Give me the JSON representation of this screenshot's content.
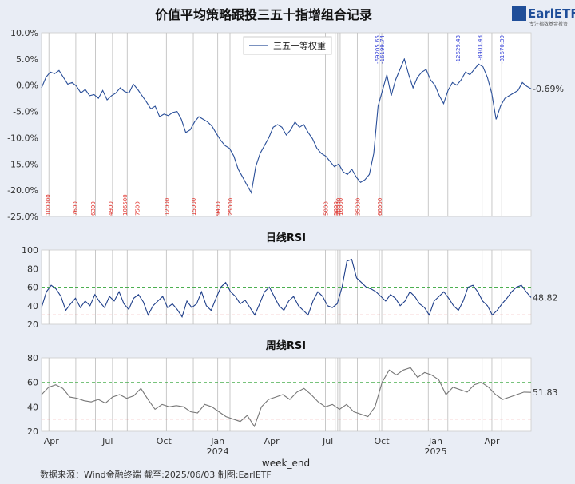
{
  "title": "价值平均策略跟投三五十指增组合记录",
  "logo": {
    "text": "EarlETF",
    "sub": "专注指数基金投资",
    "color": "#1f4e99"
  },
  "footer": "数据来源：Wind金融终端 截至:2025/06/03 制图:EarlETF",
  "xaxis": {
    "label": "week_end",
    "ticks": [
      "Apr",
      "Jul",
      "Oct",
      "Jan",
      "Apr",
      "Jul",
      "Oct",
      "Jan",
      "Apr"
    ],
    "years": [
      "2024",
      "2025"
    ]
  },
  "colors": {
    "line": "#2a4f99",
    "rsi_line": "#1f3f8a",
    "week_line": "#777777",
    "overbought": "#4caf50",
    "oversold": "#e05555",
    "vline": "#bbbbbb"
  },
  "chart_data": [
    {
      "type": "line",
      "title": "",
      "ylabel": "",
      "ylim": [
        -25,
        10
      ],
      "yticks": [
        "10.0%",
        "5.0%",
        "0.0%",
        "-5.0%",
        "-10.0%",
        "-15.0%",
        "-20.0%",
        "-25.0%"
      ],
      "legend": {
        "position": "top-center",
        "entries": [
          "三五十等权重"
        ]
      },
      "series": [
        {
          "name": "三五十等权重",
          "last_label": "-0.69%",
          "values": [
            -0.5,
            1.5,
            2.5,
            2.2,
            2.8,
            1.5,
            0.2,
            0.5,
            -0.2,
            -1.5,
            -0.8,
            -2.0,
            -1.8,
            -2.5,
            -1.0,
            -2.8,
            -2.0,
            -1.5,
            -0.5,
            -1.2,
            -1.5,
            0.2,
            -0.8,
            -2.0,
            -3.2,
            -4.5,
            -4.0,
            -6.0,
            -5.5,
            -5.8,
            -5.2,
            -5.0,
            -6.5,
            -9.0,
            -8.5,
            -7.0,
            -6.0,
            -6.5,
            -7.0,
            -7.8,
            -9.2,
            -10.5,
            -11.5,
            -12.0,
            -13.5,
            -16.0,
            -17.5,
            -19.0,
            -20.5,
            -15.5,
            -13.0,
            -11.5,
            -10.0,
            -8.0,
            -7.5,
            -8.0,
            -9.5,
            -8.5,
            -7.0,
            -8.0,
            -7.5,
            -9.0,
            -10.2,
            -12.0,
            -13.0,
            -13.5,
            -14.5,
            -15.5,
            -15.0,
            -16.5,
            -17.0,
            -16.0,
            -17.5,
            -18.5,
            -18.0,
            -17.0,
            -13.0,
            -4.0,
            -1.0,
            2.0,
            -2.0,
            1.0,
            3.0,
            5.0,
            2.0,
            -0.5,
            1.5,
            2.5,
            3.0,
            1.0,
            0.0,
            -2.0,
            -3.5,
            -1.0,
            0.5,
            0.0,
            1.0,
            2.5,
            2.0,
            3.0,
            4.0,
            3.5,
            1.5,
            -1.5,
            -6.5,
            -4.0,
            -2.5,
            -2.0,
            -1.5,
            -1.0,
            0.5,
            -0.2,
            -0.69
          ]
        }
      ],
      "annotations_bottom": [
        "100000",
        "7600",
        "6300",
        "4900",
        "106500",
        "7500",
        "12000",
        "15000",
        "9400",
        "25000",
        "5000",
        "5000",
        "20000",
        "16000",
        "35000",
        "60000"
      ],
      "annotations_top": [
        "-69205.65",
        "-16199.74",
        "-12629.48",
        "-8403.48",
        "-31670.39"
      ]
    },
    {
      "type": "line",
      "title": "日线RSI",
      "ylim": [
        20,
        100
      ],
      "yticks": [
        "100",
        "80",
        "60",
        "40",
        "20"
      ],
      "thresholds": [
        60,
        30
      ],
      "series": [
        {
          "name": "",
          "last_label": "48.82",
          "values": [
            38,
            55,
            62,
            58,
            50,
            35,
            42,
            48,
            38,
            45,
            40,
            52,
            44,
            38,
            50,
            45,
            55,
            42,
            36,
            48,
            52,
            44,
            30,
            40,
            45,
            50,
            38,
            42,
            36,
            28,
            45,
            38,
            42,
            55,
            40,
            35,
            48,
            60,
            65,
            55,
            50,
            42,
            46,
            38,
            30,
            42,
            55,
            60,
            50,
            40,
            35,
            45,
            50,
            40,
            35,
            30,
            45,
            55,
            50,
            40,
            38,
            42,
            60,
            88,
            90,
            70,
            65,
            60,
            58,
            55,
            50,
            45,
            52,
            48,
            40,
            45,
            55,
            50,
            42,
            38,
            30,
            45,
            50,
            55,
            48,
            40,
            35,
            45,
            60,
            62,
            55,
            45,
            40,
            30,
            35,
            42,
            48,
            55,
            60,
            62,
            55,
            48.82
          ]
        }
      ]
    },
    {
      "type": "line",
      "title": "周线RSI",
      "ylim": [
        20,
        80
      ],
      "yticks": [
        "80",
        "60",
        "40",
        "20"
      ],
      "thresholds": [
        60,
        30
      ],
      "series": [
        {
          "name": "",
          "last_label": "51.83",
          "values": [
            50,
            56,
            58,
            55,
            48,
            47,
            45,
            44,
            46,
            43,
            48,
            50,
            47,
            49,
            55,
            46,
            38,
            42,
            40,
            41,
            40,
            36,
            35,
            42,
            40,
            36,
            32,
            30,
            28,
            33,
            24,
            40,
            46,
            48,
            50,
            46,
            52,
            55,
            50,
            44,
            40,
            42,
            38,
            42,
            36,
            34,
            32,
            40,
            60,
            70,
            66,
            70,
            72,
            64,
            68,
            66,
            62,
            50,
            56,
            54,
            52,
            58,
            60,
            56,
            50,
            46,
            48,
            50,
            52,
            51.83
          ]
        }
      ]
    }
  ]
}
